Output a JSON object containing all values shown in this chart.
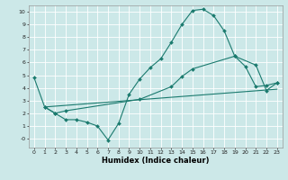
{
  "xlabel": "Humidex (Indice chaleur)",
  "bg_color": "#cce8e8",
  "grid_color": "#ffffff",
  "line_color": "#1a7a6e",
  "xlim": [
    -0.5,
    23.5
  ],
  "ylim": [
    -0.7,
    10.5
  ],
  "xticks": [
    0,
    1,
    2,
    3,
    4,
    5,
    6,
    7,
    8,
    9,
    10,
    11,
    12,
    13,
    14,
    15,
    16,
    17,
    18,
    19,
    20,
    21,
    22,
    23
  ],
  "yticks": [
    0,
    1,
    2,
    3,
    4,
    5,
    6,
    7,
    8,
    9,
    10
  ],
  "ytick_labels": [
    "-0",
    "1",
    "2",
    "3",
    "4",
    "5",
    "6",
    "7",
    "8",
    "9",
    "10"
  ],
  "line1_x": [
    0,
    1,
    2,
    3,
    4,
    5,
    6,
    7,
    8,
    9,
    10,
    11,
    12,
    13,
    14,
    15,
    16,
    17,
    18,
    19,
    20,
    21,
    22,
    23
  ],
  "line1_y": [
    4.8,
    2.5,
    2.0,
    1.5,
    1.5,
    1.3,
    1.0,
    -0.1,
    1.2,
    3.5,
    4.7,
    5.6,
    6.3,
    7.6,
    9.0,
    10.1,
    10.2,
    9.7,
    8.5,
    6.5,
    5.7,
    4.1,
    4.2,
    4.4
  ],
  "line2_x": [
    1,
    2,
    3,
    10,
    13,
    14,
    15,
    19,
    21,
    22,
    23
  ],
  "line2_y": [
    2.5,
    2.0,
    2.2,
    3.1,
    4.1,
    4.9,
    5.5,
    6.5,
    5.8,
    3.8,
    4.4
  ],
  "line3_x": [
    1,
    23
  ],
  "line3_y": [
    2.5,
    3.9
  ],
  "marker": "D",
  "markersize": 2.0,
  "linewidth": 0.8,
  "xlabel_fontsize": 6.0,
  "tick_fontsize": 4.5
}
